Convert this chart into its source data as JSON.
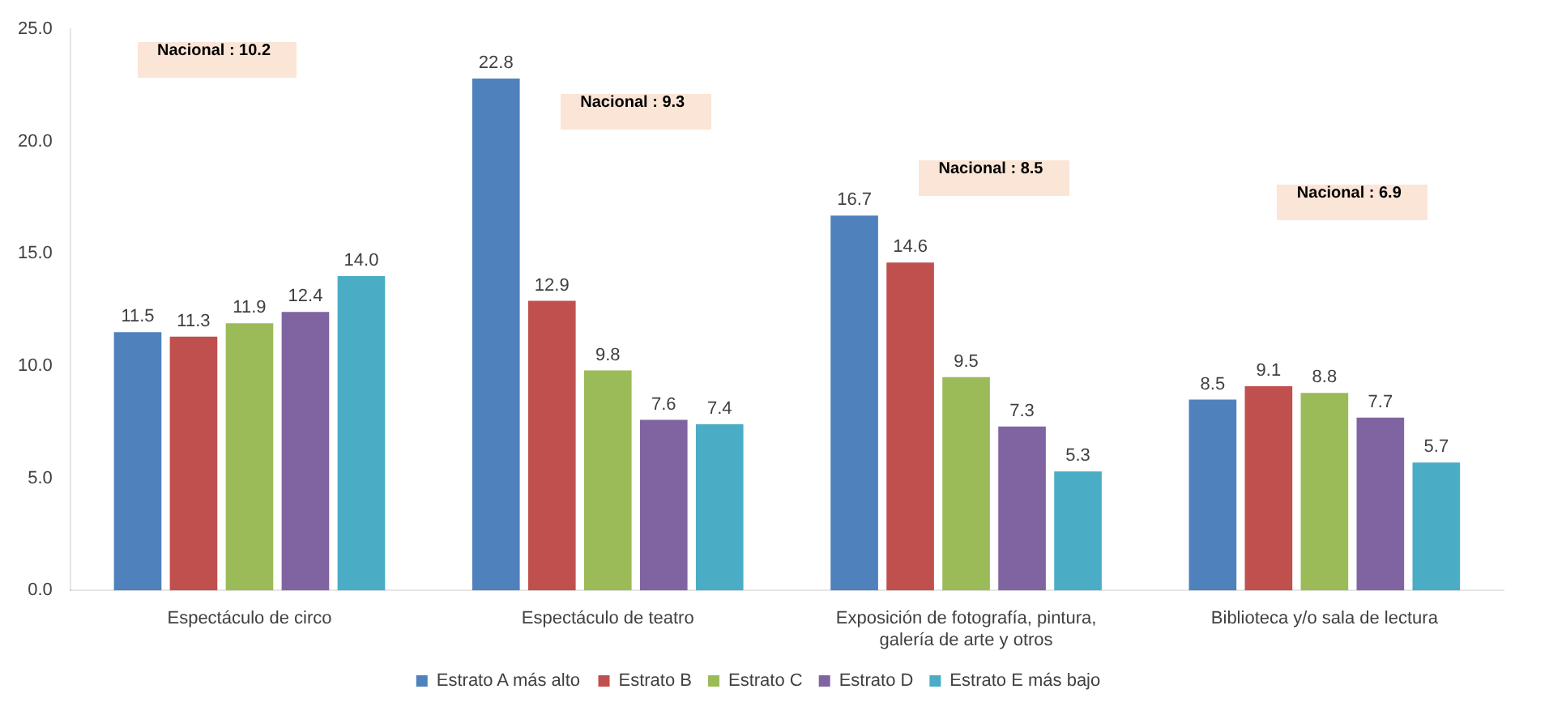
{
  "chart_data": {
    "type": "bar",
    "categories": [
      "Espectáculo de circo",
      "Espectáculo de teatro",
      "Exposición de fotografía, pintura, galería de arte y otros",
      "Biblioteca y/o sala de lectura"
    ],
    "series": [
      {
        "name": "Estrato A más alto",
        "color": "#4f81bd",
        "values": [
          11.5,
          22.8,
          16.7,
          8.5
        ],
        "value_labels": [
          "11.5",
          "22.8",
          "16.7",
          "8.5"
        ]
      },
      {
        "name": "Estrato B",
        "color": "#c0504d",
        "values": [
          11.3,
          12.9,
          14.6,
          9.1
        ],
        "value_labels": [
          "11.3",
          "12.9",
          "14.6",
          "9.1"
        ]
      },
      {
        "name": "Estrato C",
        "color": "#9bbb59",
        "values": [
          11.9,
          9.8,
          9.5,
          8.8
        ],
        "value_labels": [
          "11.9",
          "9.8",
          "9.5",
          "8.8"
        ]
      },
      {
        "name": "Estrato D",
        "color": "#8064a2",
        "values": [
          12.4,
          7.6,
          7.3,
          7.7
        ],
        "value_labels": [
          "12.4",
          "7.6",
          "7.3",
          "7.7"
        ]
      },
      {
        "name": "Estrato E más bajo",
        "color": "#4bacc6",
        "values": [
          14.0,
          7.4,
          5.3,
          5.7
        ],
        "value_labels": [
          "14.0",
          "7.4",
          "5.3",
          "5.7"
        ]
      }
    ],
    "ylim": [
      0,
      25
    ],
    "yticks": [
      {
        "value": 0,
        "label": "0.0"
      },
      {
        "value": 5,
        "label": "5.0"
      },
      {
        "value": 10,
        "label": "10.0"
      },
      {
        "value": 15,
        "label": "15.0"
      },
      {
        "value": 20,
        "label": "20.0"
      },
      {
        "value": 25,
        "label": "25.0"
      }
    ],
    "legend": "bottom",
    "annotations": [
      "Nacional : 10.2",
      "Nacional : 9.3",
      "Nacional : 8.5",
      "Nacional : 6.9"
    ]
  }
}
